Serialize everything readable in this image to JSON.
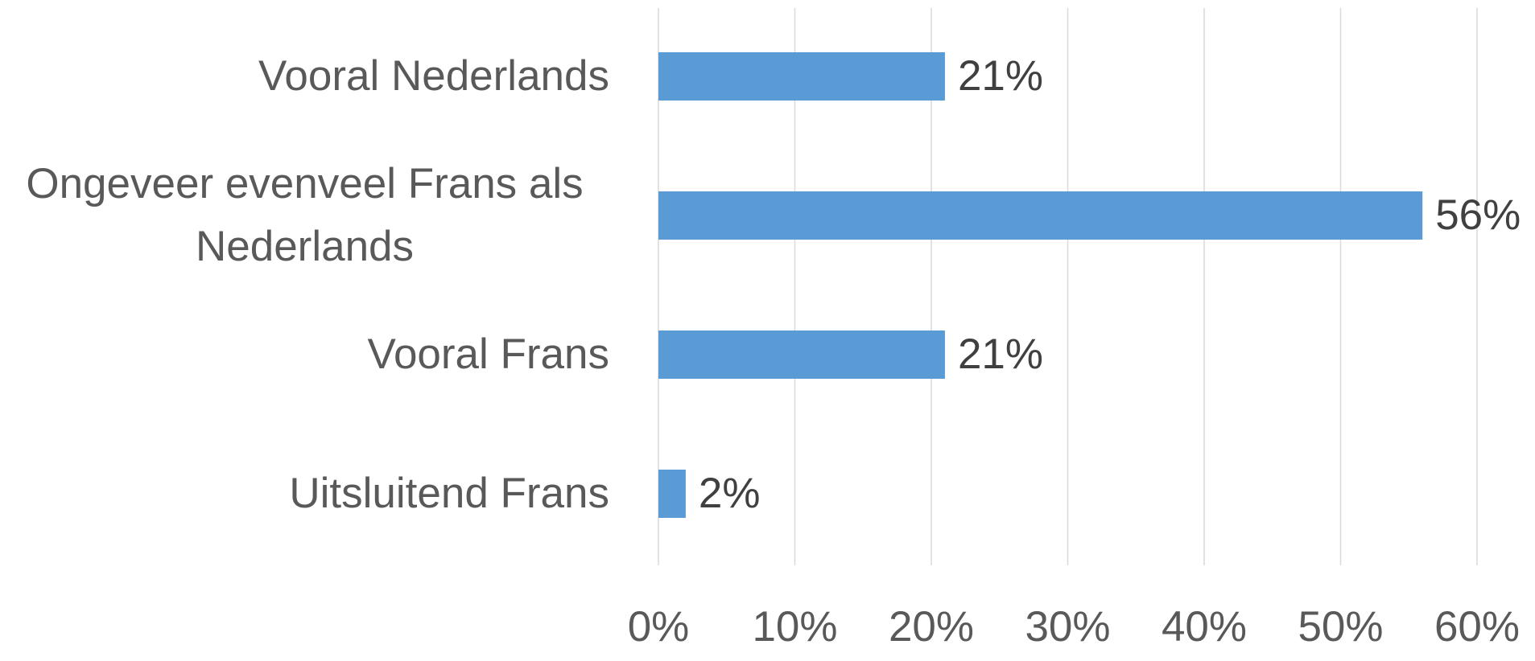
{
  "chart_data": {
    "type": "barh",
    "categories": [
      "Vooral Nederlands",
      "Ongeveer evenveel Frans als Nederlands",
      "Vooral Frans",
      "Uitsluitend Frans"
    ],
    "values": [
      21,
      56,
      21,
      2
    ],
    "value_labels": [
      "21%",
      "56%",
      "21%",
      "2%"
    ],
    "color": "#5b9bd5",
    "xlim": [
      0,
      60
    ],
    "xticks": [
      {
        "value": 0,
        "label": "0%"
      },
      {
        "value": 10,
        "label": "10%"
      },
      {
        "value": 20,
        "label": "20%"
      },
      {
        "value": 30,
        "label": "30%"
      },
      {
        "value": 40,
        "label": "40%"
      },
      {
        "value": 50,
        "label": "50%"
      },
      {
        "value": 60,
        "label": "60%"
      }
    ],
    "grid": true
  }
}
